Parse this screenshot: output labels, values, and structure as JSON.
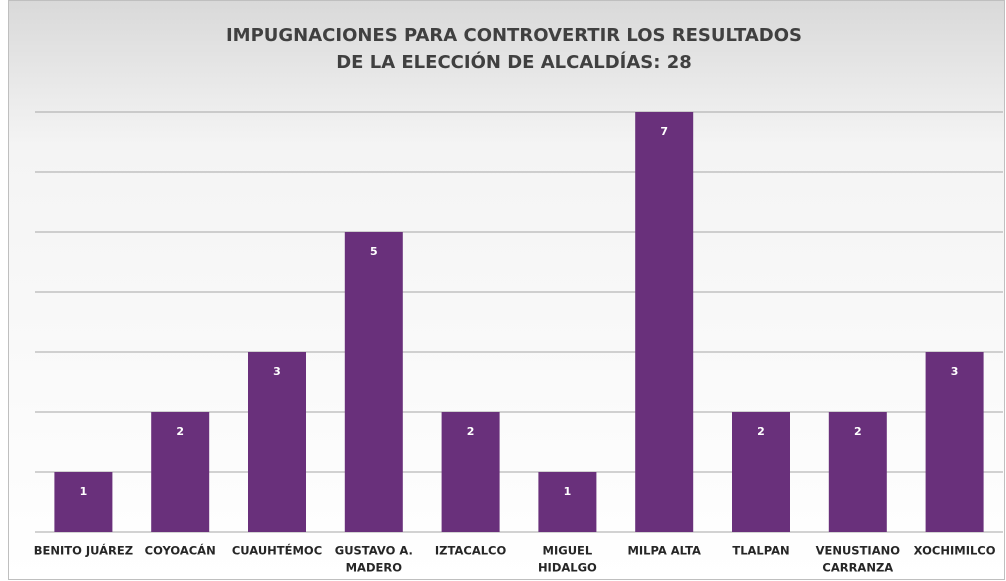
{
  "chart_data": {
    "type": "bar",
    "title": [
      "IMPUGNACIONES PARA CONTROVERTIR LOS RESULTADOS",
      "DE LA ELECCIÓN DE ALCALDÍAS: 28"
    ],
    "categories": [
      [
        "BENITO JUÁREZ"
      ],
      [
        "COYOACÁN"
      ],
      [
        "CUAUHTÉMOC"
      ],
      [
        "GUSTAVO A.",
        "MADERO"
      ],
      [
        "IZTACALCO"
      ],
      [
        "MIGUEL",
        "HIDALGO"
      ],
      [
        "MILPA ALTA"
      ],
      [
        "TLALPAN"
      ],
      [
        "VENUSTIANO",
        "CARRANZA"
      ],
      [
        "XOCHIMILCO"
      ]
    ],
    "values": [
      1,
      2,
      3,
      5,
      2,
      1,
      7,
      2,
      2,
      3
    ],
    "color": "#69307b",
    "ylim": [
      0,
      7
    ],
    "yticks": [
      0,
      1,
      2,
      3,
      4,
      5,
      6,
      7
    ],
    "grid": true
  }
}
